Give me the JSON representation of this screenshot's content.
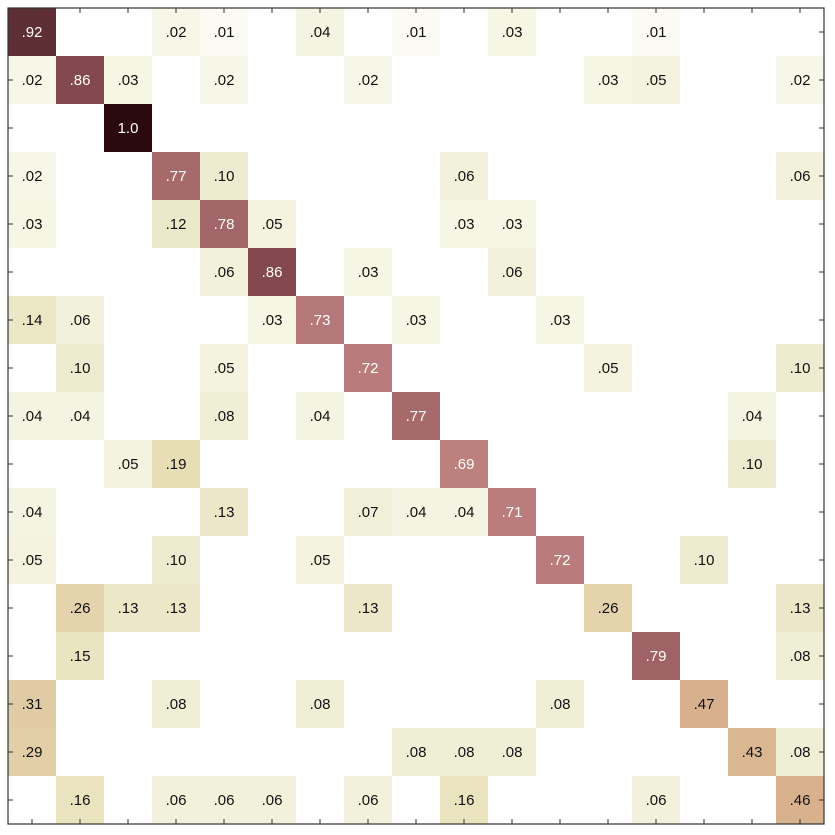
{
  "chart_data": {
    "type": "heatmap",
    "title": "",
    "xlabel": "",
    "ylabel": "",
    "n_classes": 17,
    "grid": false,
    "colorscale": [
      "#ffffff",
      "#f7f7e8",
      "#efefd6",
      "#e8e0b8",
      "#d9b48e",
      "#b97b7b",
      "#8a4e52",
      "#2a0a0f"
    ],
    "matrix": [
      [
        0.92,
        0,
        0,
        0.02,
        0.01,
        0,
        0.04,
        0,
        0.01,
        0,
        0.03,
        0,
        0,
        0.01,
        0,
        0,
        0
      ],
      [
        0.02,
        0.86,
        0.03,
        0,
        0.02,
        0,
        0,
        0.02,
        0,
        0,
        0,
        0,
        0.03,
        0.05,
        0,
        0,
        0.02
      ],
      [
        0,
        0,
        1.0,
        0,
        0,
        0,
        0,
        0,
        0,
        0,
        0,
        0,
        0,
        0,
        0,
        0,
        0
      ],
      [
        0.02,
        0,
        0,
        0.77,
        0.1,
        0,
        0,
        0,
        0,
        0.06,
        0,
        0,
        0,
        0,
        0,
        0,
        0.06
      ],
      [
        0.03,
        0,
        0,
        0.12,
        0.78,
        0.05,
        0,
        0,
        0,
        0.03,
        0.03,
        0,
        0,
        0,
        0,
        0,
        0
      ],
      [
        0,
        0,
        0,
        0,
        0.06,
        0.86,
        0,
        0.03,
        0,
        0,
        0.06,
        0,
        0,
        0,
        0,
        0,
        0
      ],
      [
        0.14,
        0.06,
        0,
        0,
        0,
        0.03,
        0.73,
        0,
        0.03,
        0,
        0,
        0.03,
        0,
        0,
        0,
        0,
        0
      ],
      [
        0,
        0.1,
        0,
        0,
        0.05,
        0,
        0,
        0.72,
        0,
        0,
        0,
        0,
        0.05,
        0,
        0,
        0,
        0.1
      ],
      [
        0.04,
        0.04,
        0,
        0,
        0.08,
        0,
        0.04,
        0,
        0.77,
        0,
        0,
        0,
        0,
        0,
        0,
        0.04,
        0
      ],
      [
        0,
        0,
        0.05,
        0.19,
        0,
        0,
        0,
        0,
        0,
        0.69,
        0,
        0,
        0,
        0,
        0,
        0.1,
        0
      ],
      [
        0.04,
        0,
        0,
        0,
        0.13,
        0,
        0,
        0.07,
        0.04,
        0.04,
        0.71,
        0,
        0,
        0,
        0,
        0,
        0
      ],
      [
        0.05,
        0,
        0,
        0.1,
        0,
        0,
        0.05,
        0,
        0,
        0,
        0,
        0.72,
        0,
        0,
        0.1,
        0,
        0
      ],
      [
        0,
        0.26,
        0.13,
        0.13,
        0,
        0,
        0,
        0.13,
        0,
        0,
        0,
        0,
        0.26,
        0,
        0,
        0,
        0.13
      ],
      [
        0,
        0.15,
        0,
        0,
        0,
        0,
        0,
        0,
        0,
        0,
        0,
        0,
        0,
        0.79,
        0,
        0,
        0.08
      ],
      [
        0.31,
        0,
        0,
        0.08,
        0,
        0,
        0.08,
        0,
        0,
        0,
        0,
        0.08,
        0,
        0,
        0.47,
        0,
        0
      ],
      [
        0.29,
        0,
        0,
        0,
        0,
        0,
        0,
        0,
        0.08,
        0.08,
        0.08,
        0,
        0,
        0,
        0,
        0.43,
        0.08
      ],
      [
        0,
        0.16,
        0,
        0.06,
        0.06,
        0.06,
        0,
        0.06,
        0,
        0.16,
        0,
        0,
        0,
        0.06,
        0,
        0,
        0.46
      ]
    ],
    "labels": [
      [
        ".92",
        "",
        "",
        ".02",
        ".01",
        "",
        ".04",
        "",
        ".01",
        "",
        ".03",
        "",
        "",
        ".01",
        "",
        "",
        ""
      ],
      [
        ".02",
        ".86",
        ".03",
        "",
        ".02",
        "",
        "",
        ".02",
        "",
        "",
        "",
        "",
        ".03",
        ".05",
        "",
        "",
        ".02"
      ],
      [
        "",
        "",
        "1.0",
        "",
        "",
        "",
        "",
        "",
        "",
        "",
        "",
        "",
        "",
        "",
        "",
        "",
        ""
      ],
      [
        ".02",
        "",
        "",
        ".77",
        ".10",
        "",
        "",
        "",
        "",
        ".06",
        "",
        "",
        "",
        "",
        "",
        "",
        ".06"
      ],
      [
        ".03",
        "",
        "",
        ".12",
        ".78",
        ".05",
        "",
        "",
        "",
        ".03",
        ".03",
        "",
        "",
        "",
        "",
        "",
        ""
      ],
      [
        "",
        "",
        "",
        "",
        ".06",
        ".86",
        "",
        ".03",
        "",
        "",
        ".06",
        "",
        "",
        "",
        "",
        "",
        ""
      ],
      [
        ".14",
        ".06",
        "",
        "",
        "",
        ".03",
        ".73",
        "",
        ".03",
        "",
        "",
        ".03",
        "",
        "",
        "",
        "",
        ""
      ],
      [
        "",
        ".10",
        "",
        "",
        ".05",
        "",
        "",
        ".72",
        "",
        "",
        "",
        "",
        ".05",
        "",
        "",
        "",
        ".10"
      ],
      [
        ".04",
        ".04",
        "",
        "",
        ".08",
        "",
        ".04",
        "",
        ".77",
        "",
        "",
        "",
        "",
        "",
        "",
        ".04",
        ""
      ],
      [
        "",
        "",
        ".05",
        ".19",
        "",
        "",
        "",
        "",
        "",
        ".69",
        "",
        "",
        "",
        "",
        "",
        ".10",
        ""
      ],
      [
        ".04",
        "",
        "",
        "",
        ".13",
        "",
        "",
        ".07",
        ".04",
        ".04",
        ".71",
        "",
        "",
        "",
        "",
        "",
        ""
      ],
      [
        ".05",
        "",
        "",
        ".10",
        "",
        "",
        ".05",
        "",
        "",
        "",
        "",
        ".72",
        "",
        "",
        ".10",
        "",
        ""
      ],
      [
        "",
        ".26",
        ".13",
        ".13",
        "",
        "",
        "",
        ".13",
        "",
        "",
        "",
        "",
        ".26",
        "",
        "",
        "",
        ".13"
      ],
      [
        "",
        ".15",
        "",
        "",
        "",
        "",
        "",
        "",
        "",
        "",
        "",
        "",
        "",
        ".79",
        "",
        "",
        ".08"
      ],
      [
        ".31",
        "",
        "",
        ".08",
        "",
        "",
        ".08",
        "",
        "",
        "",
        "",
        ".08",
        "",
        "",
        ".47",
        "",
        ""
      ],
      [
        ".29",
        "",
        "",
        "",
        "",
        "",
        "",
        "",
        ".08",
        ".08",
        ".08",
        "",
        "",
        "",
        "",
        ".43",
        ".08"
      ],
      [
        "",
        ".16",
        "",
        ".06",
        ".06",
        ".06",
        "",
        ".06",
        "",
        ".16",
        "",
        "",
        "",
        ".06",
        "",
        "",
        ".46"
      ]
    ]
  }
}
